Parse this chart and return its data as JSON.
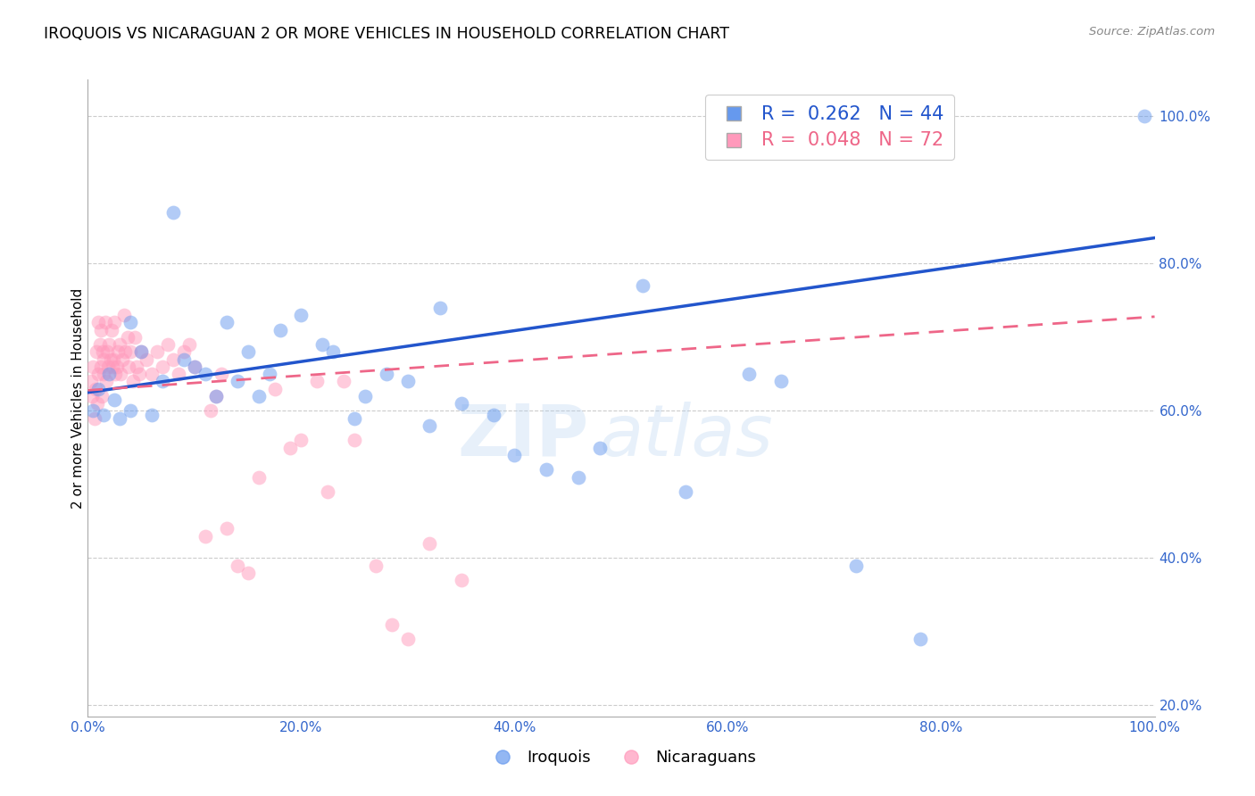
{
  "title": "IROQUOIS VS NICARAGUAN 2 OR MORE VEHICLES IN HOUSEHOLD CORRELATION CHART",
  "source_text": "Source: ZipAtlas.com",
  "ylabel": "2 or more Vehicles in Household",
  "legend_label_blue": "Iroquois",
  "legend_label_pink": "Nicaraguans",
  "r_blue": 0.262,
  "n_blue": 44,
  "r_pink": 0.048,
  "n_pink": 72,
  "blue_color": "#6699EE",
  "pink_color": "#FF99BB",
  "blue_line_color": "#2255CC",
  "pink_line_color": "#EE6688",
  "watermark_zip": "ZIP",
  "watermark_atlas": "atlas",
  "xmin": 0.0,
  "xmax": 1.0,
  "ymin": 0.185,
  "ymax": 1.05,
  "yticks": [
    0.2,
    0.4,
    0.6,
    0.8,
    1.0
  ],
  "xticks": [
    0.0,
    0.2,
    0.4,
    0.6,
    0.8,
    1.0
  ],
  "blue_line_x0": 0.0,
  "blue_line_y0": 0.625,
  "blue_line_x1": 1.0,
  "blue_line_y1": 0.835,
  "pink_line_x0": 0.0,
  "pink_line_y0": 0.628,
  "pink_line_x1": 1.0,
  "pink_line_y1": 0.728,
  "iroquois_x": [
    0.005,
    0.01,
    0.015,
    0.02,
    0.025,
    0.03,
    0.04,
    0.04,
    0.05,
    0.06,
    0.07,
    0.08,
    0.09,
    0.1,
    0.11,
    0.12,
    0.13,
    0.14,
    0.15,
    0.16,
    0.17,
    0.18,
    0.2,
    0.22,
    0.23,
    0.25,
    0.26,
    0.28,
    0.3,
    0.32,
    0.33,
    0.35,
    0.38,
    0.4,
    0.43,
    0.46,
    0.48,
    0.52,
    0.56,
    0.62,
    0.65,
    0.72,
    0.78,
    0.99
  ],
  "iroquois_y": [
    0.6,
    0.63,
    0.595,
    0.65,
    0.615,
    0.59,
    0.72,
    0.6,
    0.68,
    0.595,
    0.64,
    0.87,
    0.67,
    0.66,
    0.65,
    0.62,
    0.72,
    0.64,
    0.68,
    0.62,
    0.65,
    0.71,
    0.73,
    0.69,
    0.68,
    0.59,
    0.62,
    0.65,
    0.64,
    0.58,
    0.74,
    0.61,
    0.595,
    0.54,
    0.52,
    0.51,
    0.55,
    0.77,
    0.49,
    0.65,
    0.64,
    0.39,
    0.29,
    1.0
  ],
  "nicaraguan_x": [
    0.003,
    0.004,
    0.005,
    0.006,
    0.007,
    0.008,
    0.009,
    0.01,
    0.01,
    0.011,
    0.012,
    0.012,
    0.013,
    0.014,
    0.015,
    0.015,
    0.016,
    0.017,
    0.018,
    0.019,
    0.02,
    0.021,
    0.022,
    0.023,
    0.024,
    0.025,
    0.026,
    0.027,
    0.028,
    0.03,
    0.031,
    0.032,
    0.034,
    0.035,
    0.037,
    0.038,
    0.04,
    0.042,
    0.044,
    0.046,
    0.048,
    0.05,
    0.055,
    0.06,
    0.065,
    0.07,
    0.075,
    0.08,
    0.085,
    0.09,
    0.095,
    0.1,
    0.11,
    0.115,
    0.12,
    0.125,
    0.13,
    0.14,
    0.15,
    0.16,
    0.175,
    0.19,
    0.2,
    0.215,
    0.225,
    0.24,
    0.25,
    0.27,
    0.285,
    0.3,
    0.32,
    0.35
  ],
  "nicaraguan_y": [
    0.64,
    0.62,
    0.66,
    0.59,
    0.63,
    0.68,
    0.61,
    0.72,
    0.65,
    0.69,
    0.66,
    0.71,
    0.62,
    0.68,
    0.67,
    0.65,
    0.72,
    0.64,
    0.68,
    0.66,
    0.69,
    0.67,
    0.71,
    0.66,
    0.67,
    0.72,
    0.65,
    0.66,
    0.68,
    0.69,
    0.65,
    0.67,
    0.73,
    0.68,
    0.7,
    0.66,
    0.68,
    0.64,
    0.7,
    0.66,
    0.65,
    0.68,
    0.67,
    0.65,
    0.68,
    0.66,
    0.69,
    0.67,
    0.65,
    0.68,
    0.69,
    0.66,
    0.43,
    0.6,
    0.62,
    0.65,
    0.44,
    0.39,
    0.38,
    0.51,
    0.63,
    0.55,
    0.56,
    0.64,
    0.49,
    0.64,
    0.56,
    0.39,
    0.31,
    0.29,
    0.42,
    0.37
  ]
}
